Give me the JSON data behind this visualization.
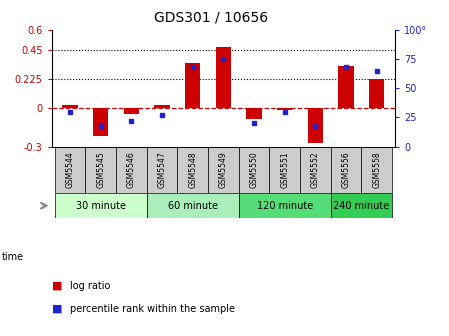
{
  "title": "GDS301 / 10656",
  "samples": [
    "GSM5544",
    "GSM5545",
    "GSM5546",
    "GSM5547",
    "GSM5548",
    "GSM5549",
    "GSM5550",
    "GSM5551",
    "GSM5552",
    "GSM5556",
    "GSM5558"
  ],
  "log_ratio": [
    0.02,
    -0.22,
    -0.05,
    0.02,
    0.35,
    0.47,
    -0.09,
    -0.02,
    -0.27,
    0.32,
    0.22
  ],
  "percentile_rank": [
    30,
    18,
    22,
    27,
    68,
    75,
    20,
    30,
    18,
    68,
    65
  ],
  "ylim_left": [
    -0.3,
    0.6
  ],
  "ylim_right": [
    0,
    100
  ],
  "yticks_left": [
    -0.3,
    0.0,
    0.225,
    0.45,
    0.6
  ],
  "yticks_right": [
    0,
    25,
    50,
    75,
    100
  ],
  "dotted_lines": [
    0.45,
    0.225
  ],
  "bar_color": "#cc0000",
  "dot_color": "#2222cc",
  "dashed_zero_color": "#cc0000",
  "time_groups": [
    {
      "label": "30 minute",
      "indices": [
        0,
        1,
        2
      ],
      "color": "#ccffcc"
    },
    {
      "label": "60 minute",
      "indices": [
        3,
        4,
        5
      ],
      "color": "#aaeebb"
    },
    {
      "label": "120 minute",
      "indices": [
        6,
        7,
        8
      ],
      "color": "#55dd77"
    },
    {
      "label": "240 minute",
      "indices": [
        9,
        10
      ],
      "color": "#33cc55"
    }
  ],
  "legend_log_ratio": "log ratio",
  "legend_percentile": "percentile rank within the sample",
  "xlabel_time": "time",
  "bar_width": 0.5,
  "sample_box_color": "#cccccc",
  "plot_bg": "#ffffff"
}
